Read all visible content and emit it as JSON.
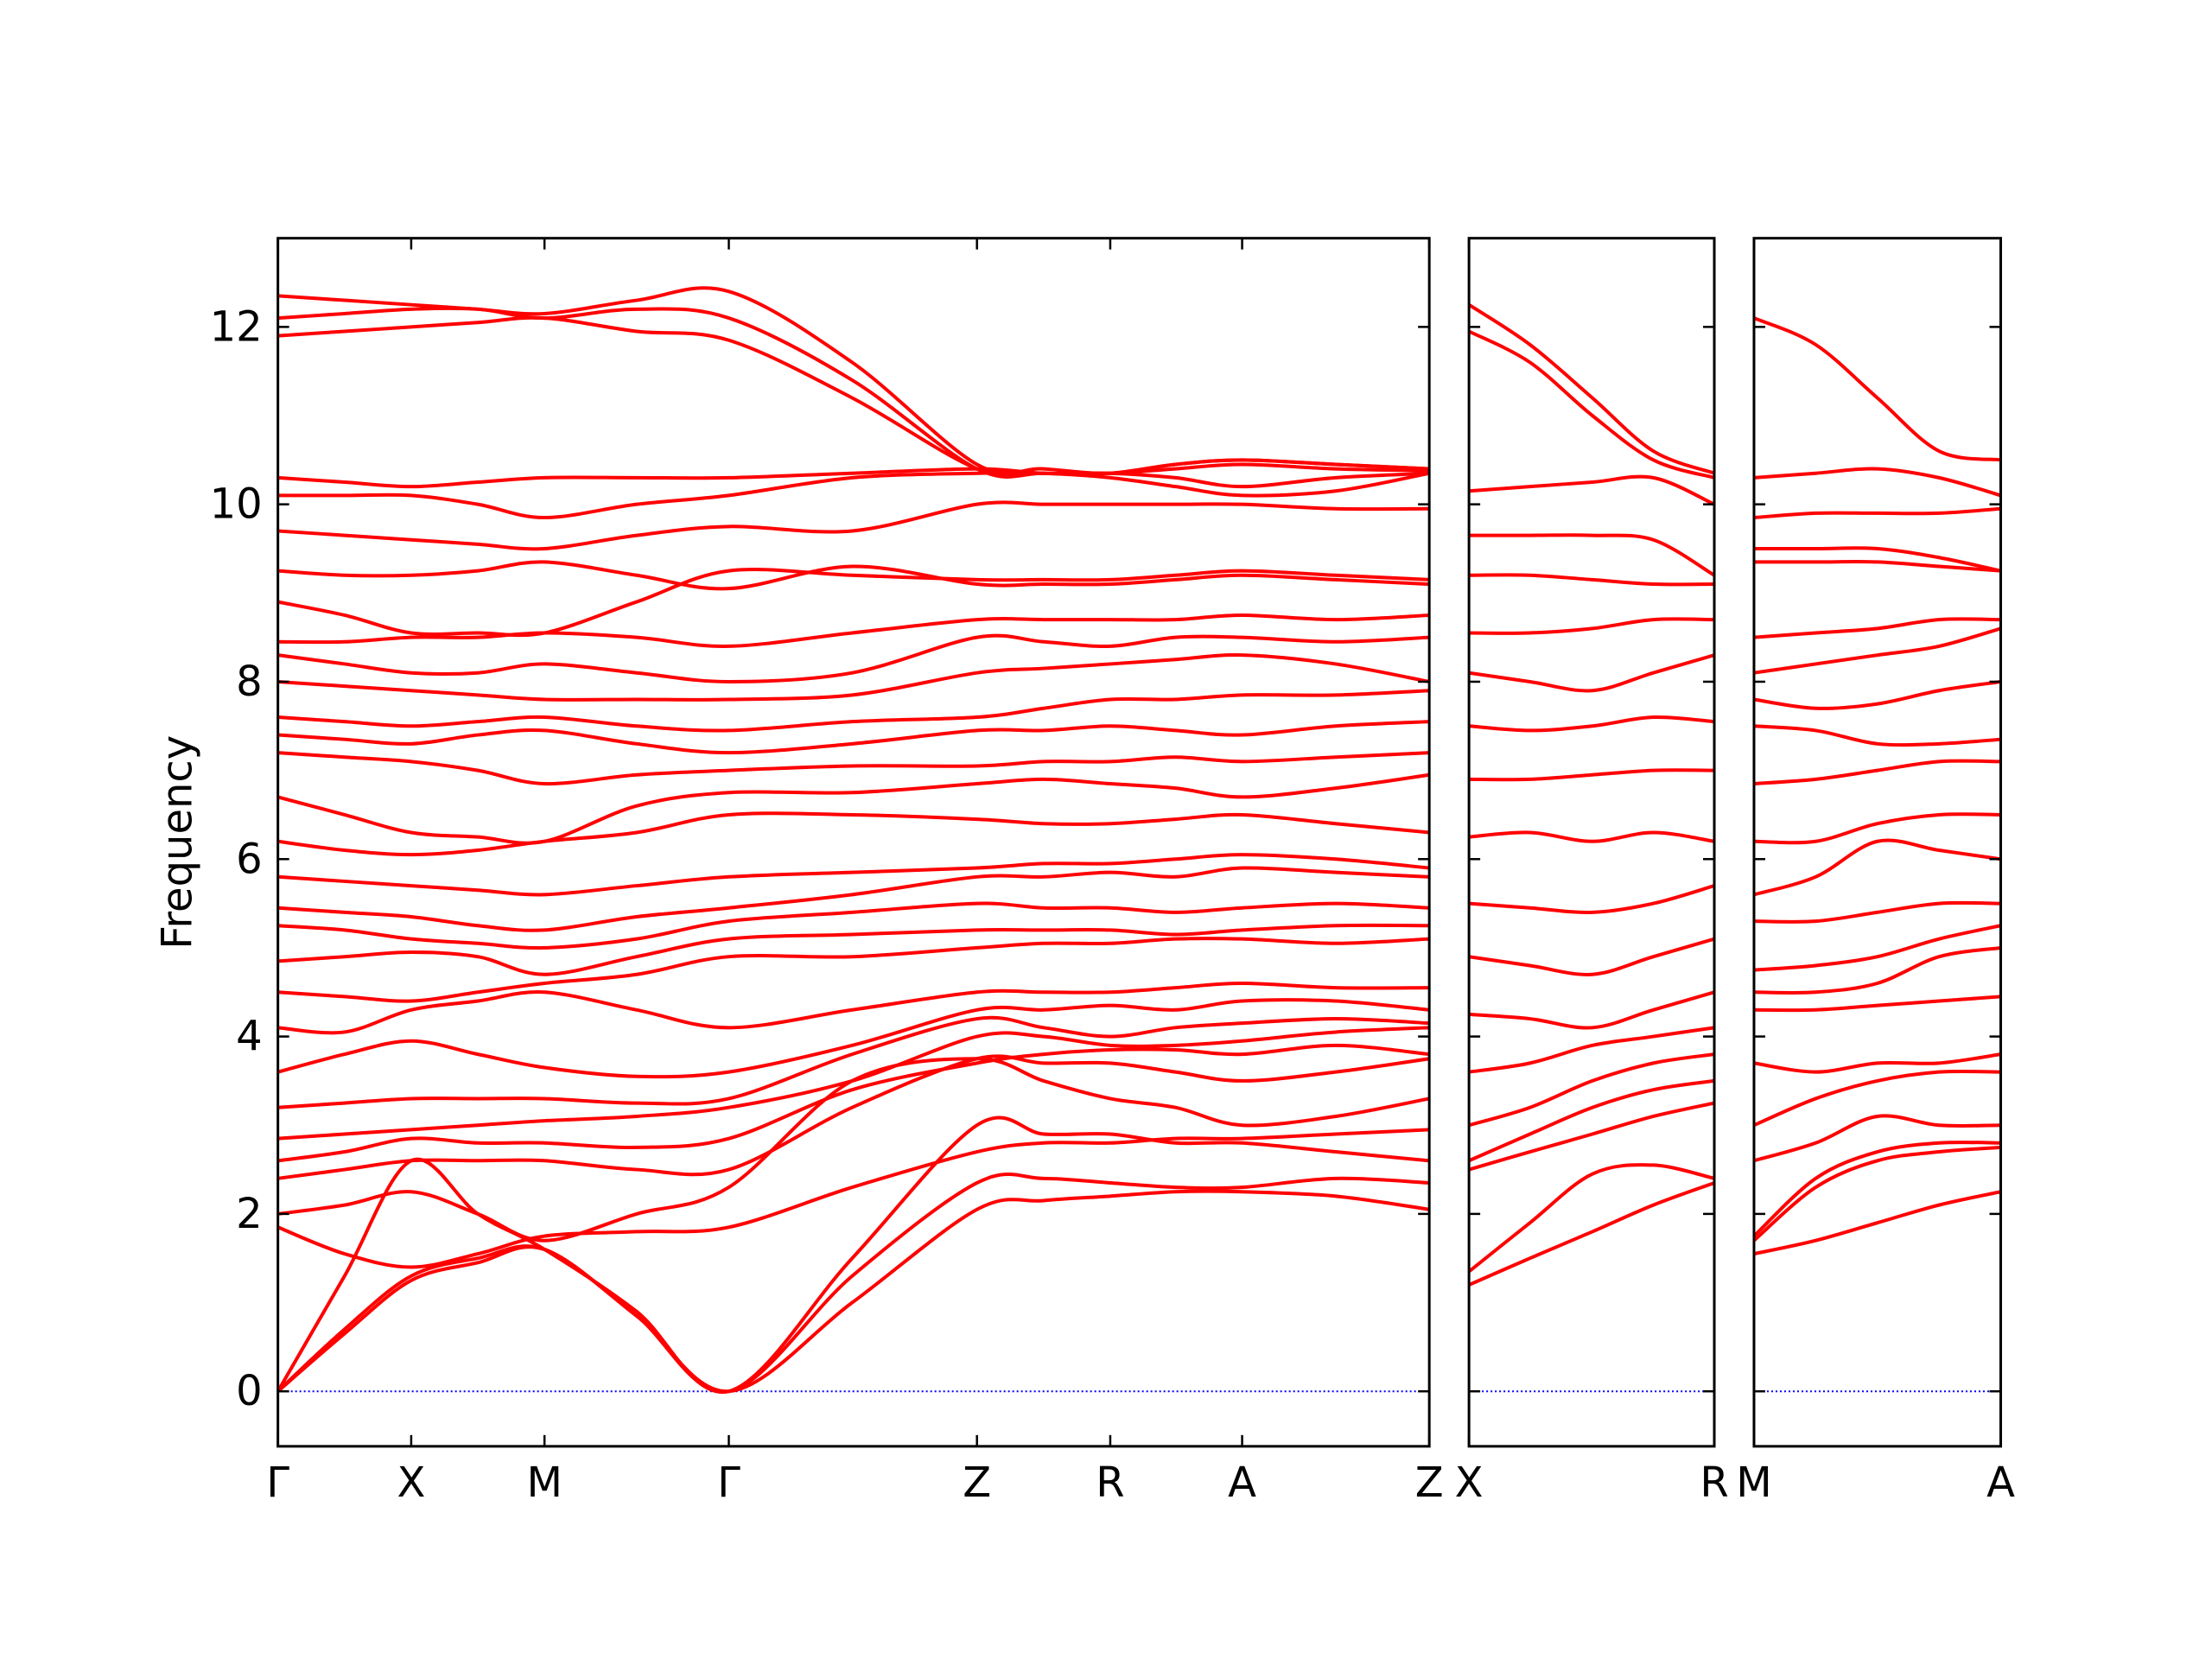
{
  "chart_data": [
    {
      "type": "line",
      "ylabel": "Frequency",
      "color": "#ff0000",
      "ylim": [
        -0.62,
        13.0
      ],
      "yticks": [
        0,
        2,
        4,
        6,
        8,
        10,
        12
      ],
      "show_ytick_labels": true,
      "hline": 0,
      "hline_color": "#0000ff",
      "xlim": [
        0,
        8.12
      ],
      "xticks": [
        {
          "value": 0,
          "label": "Γ"
        },
        {
          "value": 0.94,
          "label": "X"
        },
        {
          "value": 1.88,
          "label": "M"
        },
        {
          "value": 3.18,
          "label": "Γ"
        },
        {
          "value": 4.93,
          "label": "Z"
        },
        {
          "value": 5.87,
          "label": "R"
        },
        {
          "value": 6.8,
          "label": "A"
        },
        {
          "value": 8.12,
          "label": "Z"
        }
      ],
      "x": [
        0,
        0.47,
        0.94,
        1.41,
        1.88,
        2.53,
        3.18,
        4.05,
        4.93,
        5.4,
        5.87,
        6.33,
        6.8,
        7.46,
        8.12
      ],
      "series": [
        {
          "values": [
            0,
            0.65,
            1.25,
            1.45,
            1.6,
            0.85,
            0,
            1.0,
            2.05,
            2.15,
            2.2,
            2.25,
            2.25,
            2.2,
            2.05
          ]
        },
        {
          "values": [
            0,
            0.7,
            1.3,
            1.5,
            1.6,
            0.85,
            0,
            1.3,
            2.35,
            2.4,
            2.35,
            2.3,
            2.3,
            2.4,
            2.35
          ]
        },
        {
          "values": [
            0,
            1.3,
            2.6,
            2.0,
            1.6,
            0.9,
            0,
            1.5,
            3.0,
            2.9,
            2.9,
            2.8,
            2.8,
            2.7,
            2.6
          ]
        },
        {
          "values": [
            1.85,
            1.55,
            1.4,
            1.55,
            1.75,
            1.8,
            1.85,
            2.3,
            2.7,
            2.8,
            2.8,
            2.85,
            2.85,
            2.9,
            2.95
          ]
        },
        {
          "values": [
            2.0,
            2.1,
            2.25,
            2.0,
            1.7,
            2.0,
            2.3,
            3.5,
            3.75,
            3.5,
            3.3,
            3.2,
            3.0,
            3.1,
            3.3
          ]
        },
        {
          "values": [
            2.4,
            2.5,
            2.6,
            2.6,
            2.6,
            2.5,
            2.5,
            3.2,
            3.75,
            3.7,
            3.7,
            3.6,
            3.5,
            3.6,
            3.75
          ]
        },
        {
          "values": [
            2.6,
            2.7,
            2.85,
            2.8,
            2.8,
            2.75,
            2.85,
            3.4,
            3.7,
            3.8,
            3.85,
            3.85,
            3.8,
            3.9,
            3.8
          ]
        },
        {
          "values": [
            2.85,
            2.9,
            2.95,
            3.0,
            3.05,
            3.1,
            3.2,
            3.5,
            4.0,
            4.0,
            3.9,
            3.9,
            3.95,
            4.05,
            4.1
          ]
        },
        {
          "values": [
            3.2,
            3.25,
            3.3,
            3.3,
            3.3,
            3.25,
            3.3,
            3.8,
            4.2,
            4.1,
            4.0,
            4.1,
            4.15,
            4.2,
            4.15
          ]
        },
        {
          "values": [
            3.6,
            3.8,
            3.95,
            3.8,
            3.65,
            3.55,
            3.6,
            3.9,
            4.3,
            4.3,
            4.35,
            4.3,
            4.4,
            4.4,
            4.3
          ]
        },
        {
          "values": [
            4.1,
            4.05,
            4.3,
            4.4,
            4.5,
            4.3,
            4.1,
            4.3,
            4.5,
            4.5,
            4.5,
            4.55,
            4.6,
            4.55,
            4.55
          ]
        },
        {
          "values": [
            4.5,
            4.45,
            4.4,
            4.5,
            4.6,
            4.7,
            4.9,
            4.9,
            5.0,
            5.05,
            5.05,
            5.1,
            5.1,
            5.05,
            5.1
          ]
        },
        {
          "values": [
            4.85,
            4.9,
            4.95,
            4.9,
            4.7,
            4.9,
            5.1,
            5.15,
            5.2,
            5.2,
            5.2,
            5.15,
            5.2,
            5.25,
            5.25
          ]
        },
        {
          "values": [
            5.25,
            5.2,
            5.1,
            5.05,
            5.0,
            5.1,
            5.3,
            5.4,
            5.5,
            5.45,
            5.45,
            5.4,
            5.45,
            5.5,
            5.45
          ]
        },
        {
          "values": [
            5.45,
            5.4,
            5.35,
            5.25,
            5.2,
            5.35,
            5.45,
            5.6,
            5.8,
            5.8,
            5.85,
            5.8,
            5.9,
            5.85,
            5.8
          ]
        },
        {
          "values": [
            5.8,
            5.75,
            5.7,
            5.65,
            5.6,
            5.7,
            5.8,
            5.85,
            5.9,
            5.95,
            5.95,
            6.0,
            6.05,
            6.0,
            5.9
          ]
        },
        {
          "values": [
            6.2,
            6.1,
            6.05,
            6.1,
            6.2,
            6.3,
            6.5,
            6.5,
            6.45,
            6.4,
            6.4,
            6.45,
            6.5,
            6.4,
            6.3
          ]
        },
        {
          "values": [
            6.7,
            6.5,
            6.3,
            6.25,
            6.2,
            6.6,
            6.75,
            6.75,
            6.85,
            6.9,
            6.85,
            6.8,
            6.7,
            6.8,
            6.95
          ]
        },
        {
          "values": [
            7.2,
            7.15,
            7.1,
            7.0,
            6.85,
            6.95,
            7.0,
            7.05,
            7.05,
            7.1,
            7.1,
            7.15,
            7.1,
            7.15,
            7.2
          ]
        },
        {
          "values": [
            7.4,
            7.35,
            7.3,
            7.4,
            7.45,
            7.3,
            7.2,
            7.3,
            7.45,
            7.45,
            7.5,
            7.45,
            7.4,
            7.5,
            7.55
          ]
        },
        {
          "values": [
            7.6,
            7.55,
            7.5,
            7.55,
            7.6,
            7.5,
            7.45,
            7.55,
            7.6,
            7.7,
            7.8,
            7.8,
            7.85,
            7.85,
            7.9
          ]
        },
        {
          "values": [
            8.0,
            7.95,
            7.9,
            7.85,
            7.8,
            7.8,
            7.8,
            7.85,
            8.1,
            8.15,
            8.2,
            8.25,
            8.3,
            8.2,
            8.0
          ]
        },
        {
          "values": [
            8.3,
            8.2,
            8.1,
            8.1,
            8.2,
            8.1,
            8.0,
            8.1,
            8.5,
            8.45,
            8.4,
            8.5,
            8.5,
            8.45,
            8.5
          ]
        },
        {
          "values": [
            8.45,
            8.45,
            8.5,
            8.5,
            8.55,
            8.5,
            8.4,
            8.55,
            8.7,
            8.7,
            8.7,
            8.7,
            8.75,
            8.7,
            8.75
          ]
        },
        {
          "values": [
            8.9,
            8.75,
            8.55,
            8.55,
            8.55,
            8.9,
            9.25,
            9.2,
            9.15,
            9.15,
            9.15,
            9.2,
            9.25,
            9.2,
            9.15
          ]
        },
        {
          "values": [
            9.25,
            9.2,
            9.2,
            9.25,
            9.35,
            9.2,
            9.05,
            9.3,
            9.1,
            9.1,
            9.1,
            9.15,
            9.2,
            9.15,
            9.1
          ]
        },
        {
          "values": [
            9.7,
            9.65,
            9.6,
            9.55,
            9.5,
            9.65,
            9.75,
            9.7,
            10.0,
            10.0,
            10.0,
            10.0,
            10.0,
            9.95,
            9.95
          ]
        },
        {
          "values": [
            10.1,
            10.1,
            10.1,
            10.0,
            9.85,
            10.0,
            10.1,
            10.3,
            10.35,
            10.35,
            10.3,
            10.2,
            10.1,
            10.15,
            10.35
          ]
        },
        {
          "values": [
            10.3,
            10.25,
            10.2,
            10.25,
            10.3,
            10.3,
            10.3,
            10.35,
            10.4,
            10.35,
            10.35,
            10.45,
            10.5,
            10.45,
            10.4
          ]
        },
        {
          "values": [
            11.9,
            11.95,
            12.0,
            12.05,
            12.1,
            11.95,
            11.85,
            11.2,
            10.4,
            10.35,
            10.35,
            10.3,
            10.2,
            10.3,
            10.35
          ]
        },
        {
          "values": [
            12.1,
            12.15,
            12.2,
            12.2,
            12.1,
            12.2,
            12.1,
            11.4,
            10.4,
            10.35,
            10.35,
            10.4,
            10.45,
            10.4,
            10.38
          ]
        },
        {
          "values": [
            12.35,
            12.3,
            12.25,
            12.2,
            12.15,
            12.3,
            12.4,
            11.6,
            10.45,
            10.4,
            10.35,
            10.45,
            10.5,
            10.45,
            10.4
          ]
        }
      ]
    },
    {
      "type": "line",
      "color": "#ff0000",
      "ylim": [
        -0.62,
        13.0
      ],
      "yticks": [
        0,
        2,
        4,
        6,
        8,
        10,
        12
      ],
      "show_ytick_labels": false,
      "hline": 0,
      "hline_color": "#0000ff",
      "xlim": [
        0,
        1.73
      ],
      "xticks": [
        {
          "value": 0,
          "label": "X"
        },
        {
          "value": 1.73,
          "label": "R"
        }
      ],
      "x": [
        0,
        0.43,
        0.87,
        1.3,
        1.73
      ],
      "series": [
        {
          "values": [
            1.2,
            1.5,
            1.8,
            2.1,
            2.35
          ]
        },
        {
          "values": [
            1.35,
            1.9,
            2.45,
            2.55,
            2.4
          ]
        },
        {
          "values": [
            2.5,
            2.7,
            2.9,
            3.1,
            3.25
          ]
        },
        {
          "values": [
            2.6,
            2.9,
            3.2,
            3.4,
            3.5
          ]
        },
        {
          "values": [
            3.0,
            3.2,
            3.5,
            3.7,
            3.8
          ]
        },
        {
          "values": [
            3.6,
            3.7,
            3.9,
            4.0,
            4.1
          ]
        },
        {
          "values": [
            4.25,
            4.2,
            4.1,
            4.3,
            4.5
          ]
        },
        {
          "values": [
            4.9,
            4.8,
            4.7,
            4.9,
            5.1
          ]
        },
        {
          "values": [
            5.5,
            5.45,
            5.4,
            5.5,
            5.7
          ]
        },
        {
          "values": [
            6.25,
            6.3,
            6.2,
            6.3,
            6.2
          ]
        },
        {
          "values": [
            6.9,
            6.9,
            6.95,
            7.0,
            7.0
          ]
        },
        {
          "values": [
            7.5,
            7.45,
            7.5,
            7.6,
            7.55
          ]
        },
        {
          "values": [
            8.1,
            8.0,
            7.9,
            8.1,
            8.3
          ]
        },
        {
          "values": [
            8.55,
            8.55,
            8.6,
            8.7,
            8.7
          ]
        },
        {
          "values": [
            9.2,
            9.2,
            9.15,
            9.1,
            9.1
          ]
        },
        {
          "values": [
            9.65,
            9.65,
            9.65,
            9.6,
            9.2
          ]
        },
        {
          "values": [
            10.15,
            10.2,
            10.25,
            10.3,
            10.0
          ]
        },
        {
          "values": [
            11.95,
            11.6,
            11.0,
            10.5,
            10.3
          ]
        },
        {
          "values": [
            12.25,
            11.8,
            11.2,
            10.6,
            10.35
          ]
        }
      ]
    },
    {
      "type": "line",
      "color": "#ff0000",
      "ylim": [
        -0.62,
        13.0
      ],
      "yticks": [
        0,
        2,
        4,
        6,
        8,
        10,
        12
      ],
      "show_ytick_labels": false,
      "hline": 0,
      "hline_color": "#0000ff",
      "xlim": [
        0,
        1.74
      ],
      "xticks": [
        {
          "value": 0,
          "label": "M"
        },
        {
          "value": 1.74,
          "label": "A"
        }
      ],
      "x": [
        0,
        0.435,
        0.87,
        1.305,
        1.74
      ],
      "series": [
        {
          "values": [
            1.55,
            1.7,
            1.9,
            2.1,
            2.25
          ]
        },
        {
          "values": [
            1.7,
            2.3,
            2.6,
            2.7,
            2.75
          ]
        },
        {
          "values": [
            1.75,
            2.4,
            2.7,
            2.8,
            2.8
          ]
        },
        {
          "values": [
            2.6,
            2.8,
            3.1,
            3.0,
            3.0
          ]
        },
        {
          "values": [
            3.0,
            3.3,
            3.5,
            3.6,
            3.6
          ]
        },
        {
          "values": [
            3.7,
            3.6,
            3.7,
            3.7,
            3.8
          ]
        },
        {
          "values": [
            4.3,
            4.3,
            4.35,
            4.4,
            4.45
          ]
        },
        {
          "values": [
            4.5,
            4.5,
            4.6,
            4.9,
            5.0
          ]
        },
        {
          "values": [
            4.75,
            4.8,
            4.9,
            5.1,
            5.25
          ]
        },
        {
          "values": [
            5.3,
            5.3,
            5.4,
            5.5,
            5.5
          ]
        },
        {
          "values": [
            5.6,
            5.8,
            6.2,
            6.1,
            6.0
          ]
        },
        {
          "values": [
            6.2,
            6.2,
            6.4,
            6.5,
            6.5
          ]
        },
        {
          "values": [
            6.85,
            6.9,
            7.0,
            7.1,
            7.1
          ]
        },
        {
          "values": [
            7.5,
            7.45,
            7.3,
            7.3,
            7.35
          ]
        },
        {
          "values": [
            7.8,
            7.7,
            7.75,
            7.9,
            8.0
          ]
        },
        {
          "values": [
            8.1,
            8.2,
            8.3,
            8.4,
            8.6
          ]
        },
        {
          "values": [
            8.5,
            8.55,
            8.6,
            8.7,
            8.7
          ]
        },
        {
          "values": [
            9.35,
            9.35,
            9.35,
            9.3,
            9.25
          ]
        },
        {
          "values": [
            9.5,
            9.5,
            9.5,
            9.4,
            9.25
          ]
        },
        {
          "values": [
            9.85,
            9.9,
            9.9,
            9.9,
            9.95
          ]
        },
        {
          "values": [
            10.3,
            10.35,
            10.4,
            10.3,
            10.1
          ]
        },
        {
          "values": [
            12.1,
            11.8,
            11.2,
            10.6,
            10.5
          ]
        }
      ]
    }
  ]
}
